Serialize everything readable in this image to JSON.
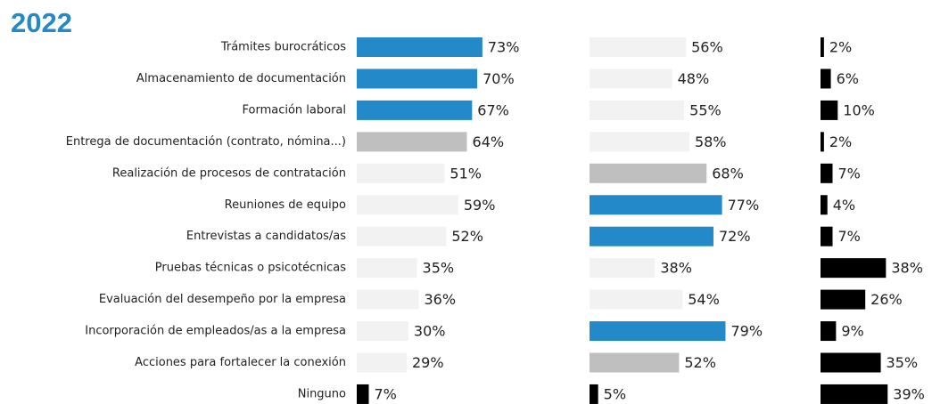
{
  "chart_data": {
    "type": "bar",
    "title": "2022",
    "categories": [
      "Trámites burocráticos",
      "Almacenamiento de documentación",
      "Formación laboral",
      "Entrega de documentación (contrato, nómina...)",
      "Realización de procesos de contratación",
      "Reuniones de equipo",
      "Entrevistas a candidatos/as",
      "Pruebas técnicas o psicotécnicas",
      "Evaluación del desempeño por la empresa",
      "Incorporación de empleados/as a la empresa",
      "Acciones para fortalecer la conexión",
      "Ninguno"
    ],
    "series": [
      {
        "values": [
          73,
          70,
          67,
          64,
          51,
          59,
          52,
          35,
          36,
          30,
          29,
          7
        ],
        "value_labels": [
          "73%",
          "70%",
          "67%",
          "64%",
          "51%",
          "59%",
          "52%",
          "35%",
          "36%",
          "30%",
          "29%",
          "7%"
        ],
        "colors": [
          "#2389c8",
          "#2389c8",
          "#2389c8",
          "#bfbfbf",
          "#f2f2f2",
          "#f2f2f2",
          "#f2f2f2",
          "#f2f2f2",
          "#f2f2f2",
          "#f2f2f2",
          "#f2f2f2",
          "#000000"
        ]
      },
      {
        "values": [
          56,
          48,
          55,
          58,
          68,
          77,
          72,
          38,
          54,
          79,
          52,
          5
        ],
        "value_labels": [
          "56%",
          "48%",
          "55%",
          "58%",
          "68%",
          "77%",
          "72%",
          "38%",
          "54%",
          "79%",
          "52%",
          "5%"
        ],
        "colors": [
          "#f2f2f2",
          "#f2f2f2",
          "#f2f2f2",
          "#f2f2f2",
          "#bfbfbf",
          "#2389c8",
          "#2389c8",
          "#f2f2f2",
          "#f2f2f2",
          "#2389c8",
          "#bfbfbf",
          "#000000"
        ]
      },
      {
        "values": [
          2,
          6,
          10,
          2,
          7,
          4,
          7,
          38,
          26,
          9,
          35,
          39
        ],
        "value_labels": [
          "2%",
          "6%",
          "10%",
          "2%",
          "7%",
          "4%",
          "7%",
          "38%",
          "26%",
          "9%",
          "35%",
          "39%"
        ],
        "colors": [
          "#000000",
          "#000000",
          "#000000",
          "#000000",
          "#000000",
          "#000000",
          "#000000",
          "#000000",
          "#000000",
          "#000000",
          "#000000",
          "#000000"
        ]
      }
    ]
  }
}
